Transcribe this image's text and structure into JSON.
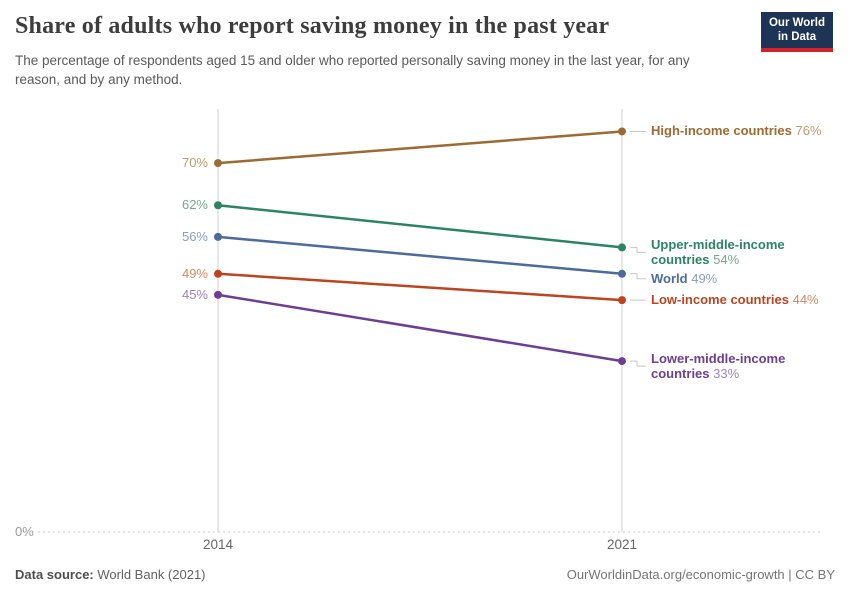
{
  "header": {
    "title": "Share of adults who report saving money in the past year",
    "subtitle": "The percentage of respondents aged 15 and older who reported personally saving money in the last year, for any reason, and by any method.",
    "logo": {
      "line1": "Our World",
      "line2": "in Data",
      "bg_color": "#1d3456",
      "bar_color": "#d2232a"
    }
  },
  "chart_data": {
    "type": "line",
    "subtype": "slope",
    "x": [
      2014,
      2021
    ],
    "x_labels": [
      "2014",
      "2021"
    ],
    "baseline_label": "0%",
    "ylim": [
      0,
      80
    ],
    "grid": "baseline-dotted-only",
    "legend_position": "right-inline-labels",
    "axis_color": "#d0d0d0",
    "series": [
      {
        "name": "High-income countries",
        "values": [
          70,
          76
        ],
        "start_label": "70%",
        "end_label": "76%",
        "color": "#9c6b33",
        "tint": "#bd9c6e"
      },
      {
        "name": "Upper-middle-income countries",
        "values": [
          62,
          54
        ],
        "start_label": "62%",
        "end_label": "54%",
        "color": "#2c8465",
        "tint": "#79a690"
      },
      {
        "name": "World",
        "values": [
          56,
          49
        ],
        "start_label": "56%",
        "end_label": "49%",
        "color": "#4c6a9c",
        "tint": "#8b9dc1"
      },
      {
        "name": "Low-income countries",
        "values": [
          49,
          44
        ],
        "start_label": "49%",
        "end_label": "44%",
        "color": "#bb4421",
        "tint": "#d08a63"
      },
      {
        "name": "Lower-middle-income countries",
        "values": [
          45,
          33
        ],
        "start_label": "45%",
        "end_label": "33%",
        "color": "#6d3e91",
        "tint": "#9e81bd"
      }
    ]
  },
  "footer": {
    "source_label": "Data source:",
    "source_value": " World Bank (2021)",
    "credit": "OurWorldinData.org/economic-growth | CC BY"
  }
}
